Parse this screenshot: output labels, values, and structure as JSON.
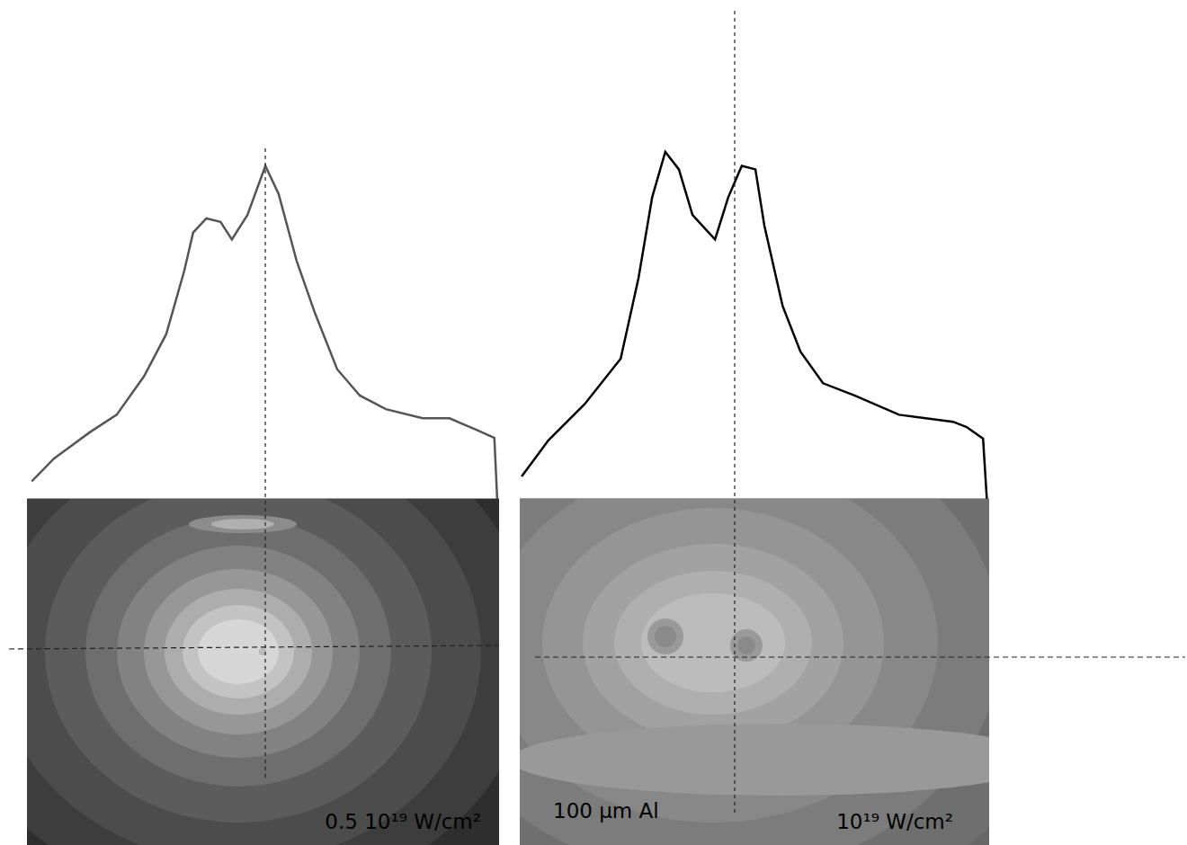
{
  "chart_data": [
    {
      "type": "line",
      "color": "#555555",
      "marker": "none",
      "line_style": "solid",
      "tick_labels": false,
      "grid": false,
      "xlim": [
        0,
        100
      ],
      "ylim": [
        0,
        100
      ],
      "x": [
        1,
        5.7,
        13.3,
        19,
        24.8,
        29.5,
        33.3,
        35.2,
        38,
        41,
        43.4,
        46.7,
        50.5,
        53.3,
        57.1,
        61,
        65.7,
        70.5,
        76,
        83.8,
        89.5,
        95.2,
        99,
        99.6
      ],
      "values": [
        5,
        11.5,
        19,
        24,
        35,
        47,
        65,
        76,
        80,
        79,
        74,
        81,
        95,
        87,
        68,
        53,
        37,
        29.5,
        25.6,
        23,
        23,
        19.7,
        17.4,
        0
      ],
      "annotations": [
        "0.5 10¹⁹ W/cm²"
      ]
    },
    {
      "type": "line",
      "color": "#000000",
      "marker": "none",
      "line_style": "solid",
      "tick_labels": false,
      "grid": false,
      "xlim": [
        0,
        100
      ],
      "ylim": [
        0,
        100
      ],
      "x": [
        0.4,
        6.1,
        13.8,
        21.5,
        25.3,
        28.2,
        31,
        33.9,
        36.8,
        41.6,
        44.4,
        47.3,
        50.2,
        52.1,
        56,
        59.8,
        64.6,
        71.3,
        80.8,
        92.3,
        95.2,
        98.7,
        99.5
      ],
      "values": [
        6.4,
        16.7,
        27,
        40,
        63,
        86,
        99,
        94,
        81,
        74,
        86,
        95,
        94,
        78,
        55,
        42,
        33,
        29.5,
        24,
        22,
        20.5,
        17.2,
        0
      ],
      "annotations": [
        "100 µm Al",
        "10¹⁹ W/cm²"
      ]
    }
  ]
}
